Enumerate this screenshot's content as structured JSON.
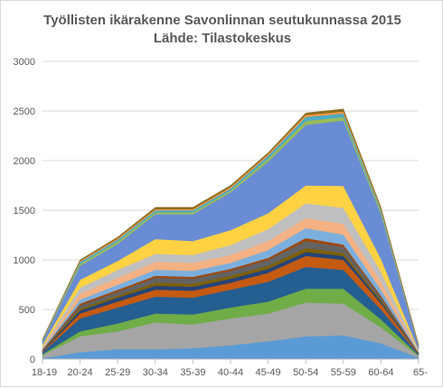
{
  "chart_data": {
    "type": "area",
    "stacked": true,
    "title": "Työllisten ikärakenne Savonlinnan seutukunnassa 2015",
    "subtitle": "Lähde: Tilastokeskus",
    "categories": [
      "18-19",
      "20-24",
      "25-29",
      "30-34",
      "35-39",
      "40-44",
      "45-49",
      "50-54",
      "55-59",
      "60-64",
      "65-"
    ],
    "ylim": [
      0,
      3000
    ],
    "yticks": [
      "0",
      "500",
      "1000",
      "1500",
      "2000",
      "2500",
      "3000"
    ],
    "grid": true,
    "legend": "none",
    "series": [
      {
        "color": "#5B9BD5",
        "values": [
          10,
          70,
          100,
          100,
          110,
          140,
          180,
          230,
          240,
          160,
          15
        ]
      },
      {
        "color": "#A5A5A5",
        "values": [
          30,
          160,
          180,
          270,
          240,
          270,
          280,
          340,
          320,
          160,
          15
        ]
      },
      {
        "color": "#70AD47",
        "values": [
          10,
          50,
          80,
          90,
          100,
          110,
          120,
          140,
          150,
          80,
          8
        ]
      },
      {
        "color": "#255E91",
        "values": [
          20,
          130,
          160,
          170,
          170,
          180,
          200,
          220,
          190,
          100,
          12
        ]
      },
      {
        "color": "#C55A11",
        "values": [
          5,
          50,
          60,
          70,
          70,
          70,
          90,
          110,
          100,
          60,
          6
        ]
      },
      {
        "color": "#264478",
        "values": [
          5,
          30,
          40,
          40,
          40,
          40,
          40,
          40,
          40,
          20,
          3
        ]
      },
      {
        "color": "#7F6000",
        "values": [
          5,
          20,
          20,
          30,
          30,
          30,
          30,
          40,
          30,
          15,
          2
        ]
      },
      {
        "color": "#636363",
        "values": [
          5,
          30,
          40,
          50,
          50,
          50,
          60,
          70,
          60,
          30,
          3
        ]
      },
      {
        "color": "#9E480E",
        "values": [
          5,
          20,
          20,
          20,
          20,
          20,
          20,
          30,
          25,
          15,
          2
        ]
      },
      {
        "color": "#7CAFDD",
        "values": [
          10,
          40,
          50,
          60,
          60,
          60,
          80,
          100,
          100,
          60,
          5
        ]
      },
      {
        "color": "#F4B183",
        "values": [
          10,
          60,
          70,
          80,
          80,
          80,
          90,
          100,
          110,
          80,
          6
        ]
      },
      {
        "color": "#BFBFBF",
        "values": [
          10,
          60,
          80,
          80,
          80,
          100,
          120,
          150,
          160,
          100,
          8
        ]
      },
      {
        "color": "#FFD243",
        "values": [
          20,
          80,
          90,
          150,
          140,
          150,
          160,
          180,
          220,
          130,
          10
        ]
      },
      {
        "color": "#6A8CD4",
        "values": [
          40,
          140,
          170,
          250,
          270,
          380,
          520,
          610,
          660,
          450,
          40
        ]
      },
      {
        "color": "#9BBB59",
        "values": [
          5,
          20,
          25,
          20,
          20,
          20,
          30,
          40,
          35,
          25,
          3
        ]
      },
      {
        "color": "#4BACC6",
        "values": [
          5,
          20,
          20,
          20,
          20,
          20,
          30,
          40,
          35,
          20,
          3
        ]
      },
      {
        "color": "#F79646",
        "values": [
          3,
          10,
          12,
          12,
          12,
          15,
          15,
          20,
          20,
          12,
          2
        ]
      },
      {
        "color": "#8C6D1F",
        "values": [
          2,
          10,
          13,
          18,
          18,
          15,
          15,
          20,
          25,
          13,
          2
        ]
      }
    ]
  }
}
